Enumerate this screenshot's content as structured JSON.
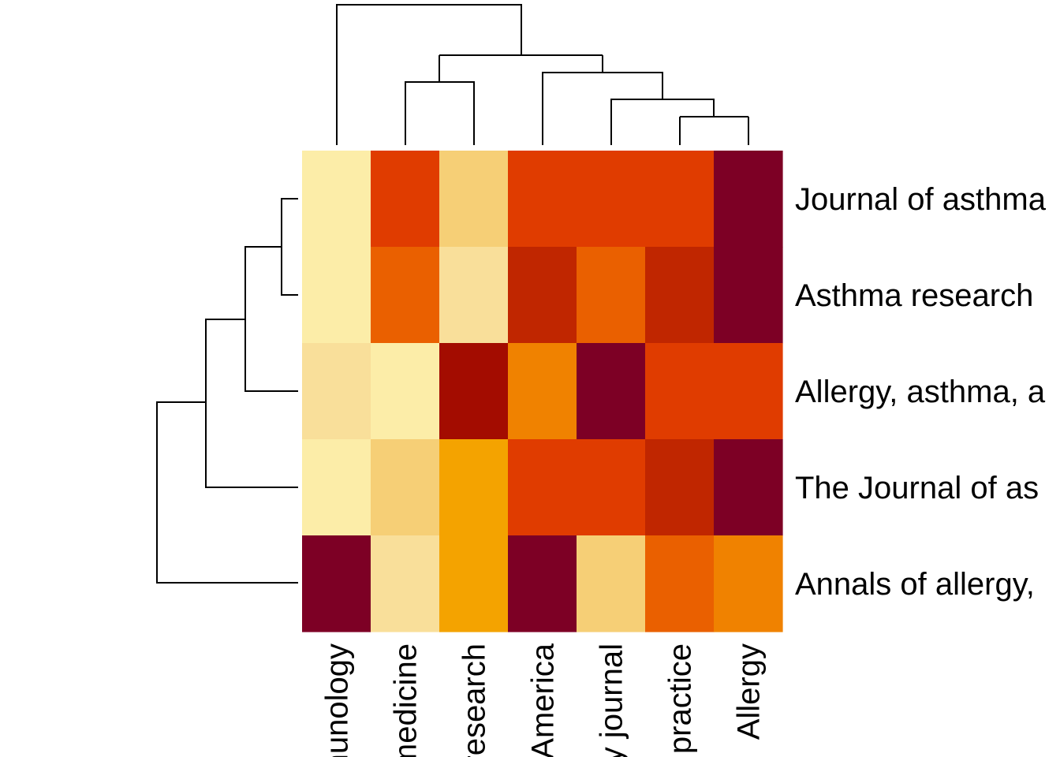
{
  "chart_data": {
    "type": "heatmap",
    "title": "",
    "xlabel": "",
    "ylabel": "",
    "columns": [
      "nunology",
      "medicine",
      "research",
      "America",
      "y journal",
      "practice",
      "Allergy"
    ],
    "rows": [
      "Journal of asthma",
      "Asthma research",
      "Allergy, asthma, a",
      "The Journal of as",
      "Annals of allergy,"
    ],
    "values": [
      [
        0.05,
        0.75,
        0.3,
        0.7,
        0.75,
        0.75,
        1.0
      ],
      [
        0.05,
        0.6,
        0.2,
        0.85,
        0.6,
        0.85,
        1.0
      ],
      [
        0.2,
        0.1,
        0.95,
        0.55,
        1.0,
        0.7,
        0.75
      ],
      [
        0.05,
        0.3,
        0.45,
        0.75,
        0.75,
        0.85,
        1.0
      ],
      [
        1.0,
        0.2,
        0.45,
        1.0,
        0.3,
        0.6,
        0.55
      ]
    ],
    "color_scale": [
      "#FFFFC8",
      "#FCEDA8",
      "#F9DF9A",
      "#F6CF76",
      "#F6B73A",
      "#F4A300",
      "#F08200",
      "#EA6000",
      "#E03C00",
      "#C02600",
      "#A30C00",
      "#7D0025"
    ],
    "column_dendrogram": true,
    "row_dendrogram": true,
    "grid": false,
    "legend": "none"
  }
}
